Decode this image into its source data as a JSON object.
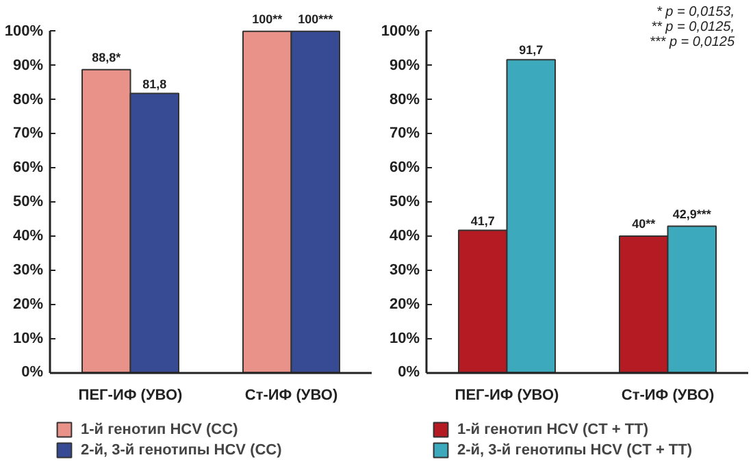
{
  "chart_data": [
    {
      "type": "bar",
      "categories": [
        "ПЕГ-ИФ (УВО)",
        "Ст-ИФ (УВО)"
      ],
      "ylim": [
        0,
        100
      ],
      "yticks": [
        {
          "value": 0,
          "label": "0%"
        },
        {
          "value": 10,
          "label": "10%"
        },
        {
          "value": 20,
          "label": "20%"
        },
        {
          "value": 30,
          "label": "30%"
        },
        {
          "value": 40,
          "label": "40%"
        },
        {
          "value": 50,
          "label": "50%"
        },
        {
          "value": 60,
          "label": "60%"
        },
        {
          "value": 70,
          "label": "70%"
        },
        {
          "value": 80,
          "label": "80%"
        },
        {
          "value": 90,
          "label": "90%"
        },
        {
          "value": 100,
          "label": "100%"
        }
      ],
      "grid": false,
      "legend": "bottom",
      "series": [
        {
          "name": "1-й генотип HCV (СС)",
          "color": "#e8928a",
          "values": [
            88.8,
            100
          ],
          "value_labels": [
            "88,8*",
            "100**"
          ]
        },
        {
          "name": "2-й, 3-й генотипы HCV (СС)",
          "color": "#364b93",
          "values": [
            81.8,
            100
          ],
          "value_labels": [
            "81,8",
            "100***"
          ]
        }
      ]
    },
    {
      "type": "bar",
      "categories": [
        "ПЕГ-ИФ (УВО)",
        "Ст-ИФ (УВО)"
      ],
      "ylim": [
        0,
        100
      ],
      "yticks": [
        {
          "value": 0,
          "label": "0%"
        },
        {
          "value": 10,
          "label": "10%"
        },
        {
          "value": 20,
          "label": "20%"
        },
        {
          "value": 30,
          "label": "30%"
        },
        {
          "value": 40,
          "label": "40%"
        },
        {
          "value": 50,
          "label": "50%"
        },
        {
          "value": 60,
          "label": "60%"
        },
        {
          "value": 70,
          "label": "70%"
        },
        {
          "value": 80,
          "label": "80%"
        },
        {
          "value": 90,
          "label": "90%"
        },
        {
          "value": 100,
          "label": "100%"
        }
      ],
      "grid": false,
      "legend": "bottom",
      "annotations": [
        "* p = 0,0153,",
        "** p = 0,0125,",
        "*** p = 0,0125"
      ],
      "series": [
        {
          "name": "1-й генотип HCV (CT + TT)",
          "color": "#b51b22",
          "values": [
            41.7,
            40
          ],
          "value_labels": [
            "41,7",
            "40**"
          ]
        },
        {
          "name": "2-й, 3-й генотипы HCV (CT + TT)",
          "color": "#3ca9bd",
          "values": [
            91.7,
            42.9
          ],
          "value_labels": [
            "91,7",
            "42,9***"
          ]
        }
      ]
    }
  ]
}
